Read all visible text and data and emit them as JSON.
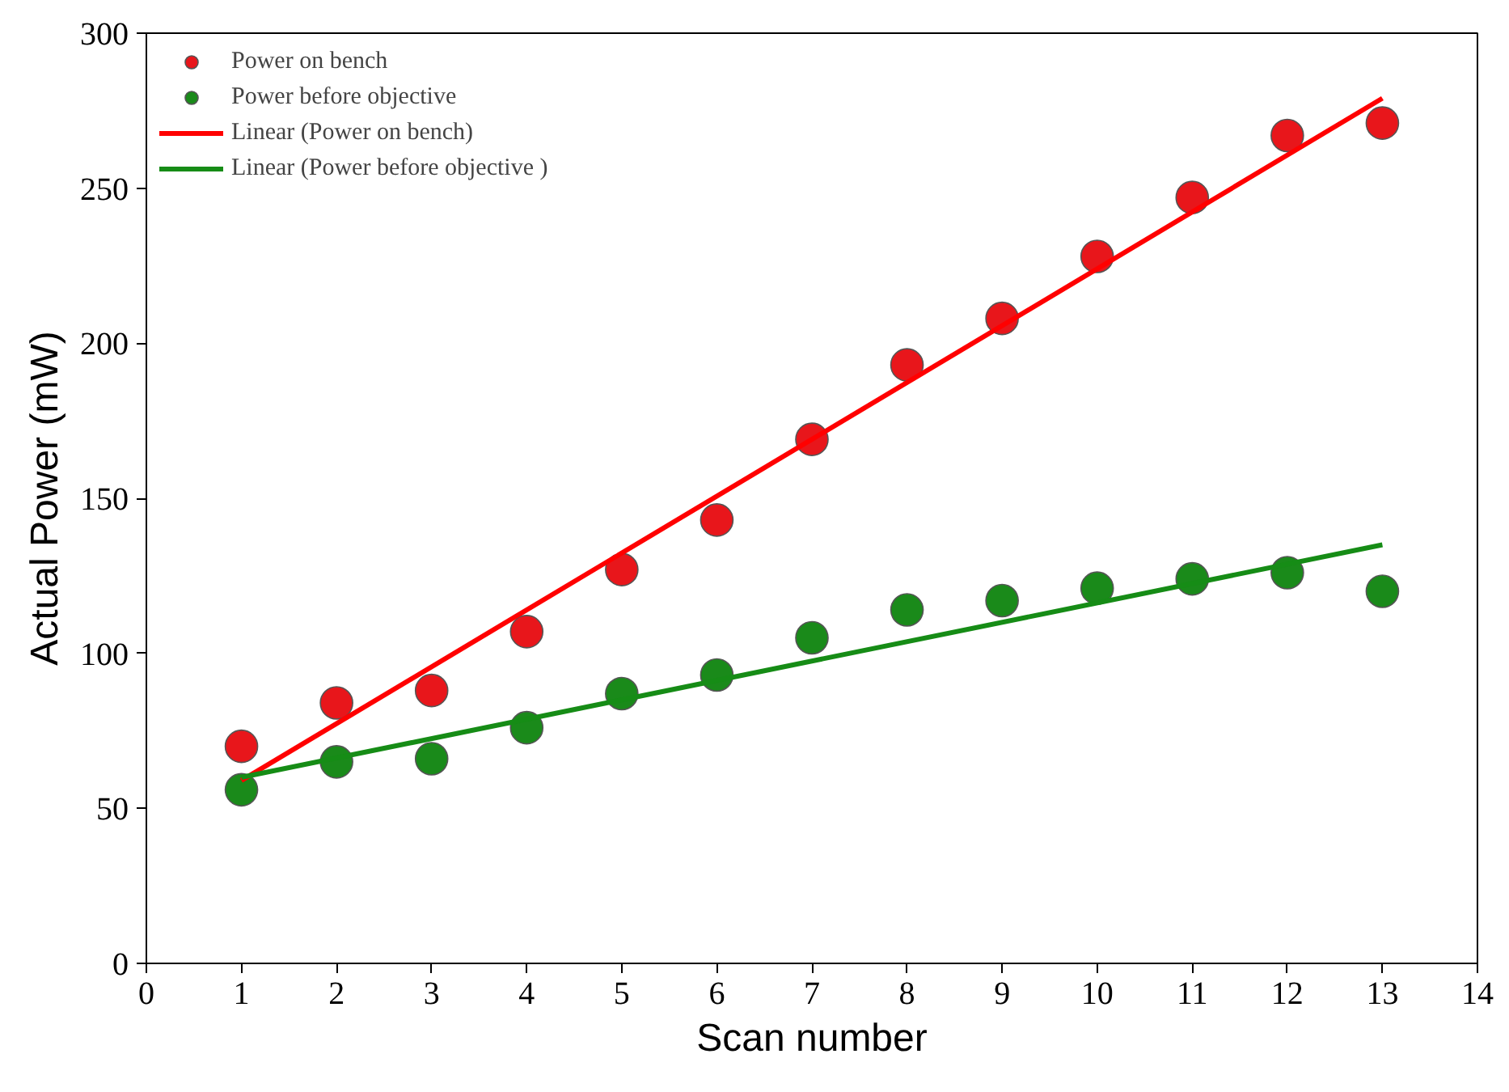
{
  "chart_data": {
    "type": "scatter",
    "xlabel": "Scan number",
    "ylabel": "Actual Power (mW)",
    "x": [
      1,
      2,
      3,
      4,
      5,
      6,
      7,
      8,
      9,
      10,
      11,
      12,
      13
    ],
    "series": [
      {
        "name": "Power on bench",
        "marker": "circle",
        "color": "#e8161b",
        "values": [
          70,
          84,
          88,
          107,
          127,
          143,
          169,
          193,
          208,
          228,
          247,
          267,
          271
        ]
      },
      {
        "name": "Power before objective",
        "marker": "circle",
        "color": "#1a8a1a",
        "values": [
          56,
          65,
          66,
          76,
          87,
          93,
          105,
          114,
          117,
          121,
          124,
          126,
          120
        ]
      },
      {
        "name": "Linear (Power on bench)",
        "type": "line",
        "marker": "none",
        "color": "#ff0000",
        "values": [
          59,
          null,
          null,
          null,
          null,
          null,
          null,
          null,
          null,
          null,
          null,
          null,
          279
        ]
      },
      {
        "name": "Linear (Power before objective )",
        "type": "line",
        "marker": "none",
        "color": "#168c16",
        "values": [
          60,
          null,
          null,
          null,
          null,
          null,
          null,
          null,
          null,
          null,
          null,
          null,
          135
        ]
      }
    ],
    "xlim": [
      0,
      14
    ],
    "xticks": [
      0,
      1,
      2,
      3,
      4,
      5,
      6,
      7,
      8,
      9,
      10,
      11,
      12,
      13,
      14
    ],
    "ylim": [
      0,
      300
    ],
    "yticks": [
      0,
      50,
      100,
      150,
      200,
      250,
      300
    ],
    "grid": false,
    "legend": "top left",
    "line_style": "solid"
  }
}
